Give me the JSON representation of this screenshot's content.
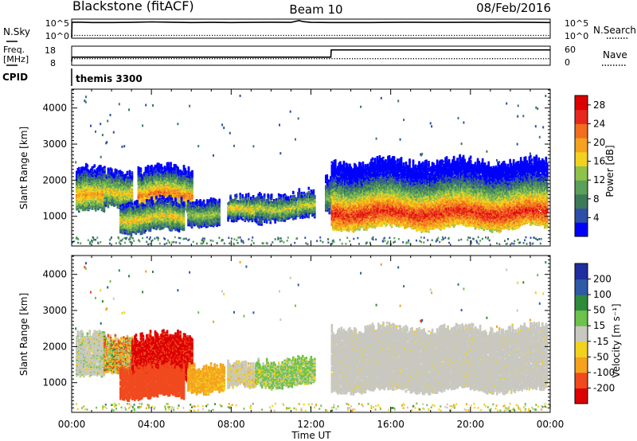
{
  "header": {
    "station": "Blackstone (fitACF)",
    "beam": "Beam 10",
    "date": "08/Feb/2016"
  },
  "colors": {
    "gs_gray": "#c8c8c0",
    "power_scale": [
      "#0000ff",
      "#2e4fa8",
      "#3d7a5a",
      "#5aa05a",
      "#8fc24a",
      "#f2d21e",
      "#f5a21e",
      "#f06e1e",
      "#e8281e",
      "#dc0000"
    ],
    "velocity_scale": [
      "#dc0000",
      "#f04a1e",
      "#f5a21e",
      "#f2d21e",
      "#c8c8c0",
      "#6cc24a",
      "#2e8a3c",
      "#2e5aa8",
      "#1f2fa0"
    ]
  },
  "chart_data": [
    {
      "type": "line",
      "panel": "nsky-nsearch",
      "labels": {
        "left": "N.Sky",
        "right": "N.Search"
      },
      "left_ticks": [
        "10^5",
        "10^0"
      ],
      "right_ticks": [
        "10^5",
        "10^0"
      ],
      "series": [
        {
          "name": "N.Sky",
          "style": "solid",
          "x": [
            0,
            0.02,
            0.5,
            1,
            2,
            3,
            4,
            5,
            6,
            7,
            8,
            9,
            10,
            11,
            11.4,
            11.6,
            12,
            13,
            14,
            15,
            16,
            17,
            18,
            19,
            20,
            21,
            22,
            23,
            24
          ],
          "y": [
            0,
            4.6,
            4.6,
            4.5,
            4.5,
            4.55,
            4.7,
            4.6,
            4.5,
            4.55,
            4.5,
            4.55,
            4.6,
            4.55,
            5.1,
            4.8,
            4.55,
            4.5,
            4.5,
            4.5,
            4.55,
            4.6,
            4.55,
            4.55,
            4.6,
            4.55,
            4.6,
            4.55,
            4.5
          ]
        },
        {
          "name": "N.Search",
          "style": "dotted",
          "x": [
            0,
            24
          ],
          "y": [
            0.6,
            0.6
          ]
        }
      ]
    },
    {
      "type": "line",
      "panel": "freq-nave",
      "labels": {
        "left": "Freq. [MHz]",
        "right": "Nave",
        "cpid": "CPID"
      },
      "left_ticks": [
        "18",
        "8"
      ],
      "right_ticks": [
        "60",
        "0"
      ],
      "cpid": "themis 3300",
      "series": [
        {
          "name": "Freq",
          "style": "solid",
          "x": [
            0,
            0.02,
            13,
            13.02,
            24
          ],
          "y": [
            8,
            11,
            11,
            16,
            16
          ]
        },
        {
          "name": "Nave",
          "style": "dotted",
          "x": [
            0,
            24
          ],
          "y": [
            10,
            10
          ]
        }
      ]
    },
    {
      "type": "heatmap",
      "panel": "power",
      "ylabel": "Slant Range [km]",
      "yticks": [
        "1000",
        "2000",
        "3000",
        "4000"
      ],
      "ylim": [
        200,
        4500
      ],
      "xlim": [
        0,
        24
      ],
      "colorbar": {
        "label": "Power [dB]",
        "ticks": [
          "4",
          "8",
          "12",
          "16",
          "20",
          "24",
          "28"
        ],
        "range": [
          0,
          30
        ]
      },
      "regions": [
        {
          "t0": 0.2,
          "t1": 1.6,
          "r_lo": 1150,
          "r_hi": 2300,
          "peak_r": 1550,
          "peak": 20
        },
        {
          "t0": 1.6,
          "t1": 3.0,
          "r_lo": 1300,
          "r_hi": 2250,
          "peak_r": 1700,
          "peak": 18
        },
        {
          "t0": 3.3,
          "t1": 6.0,
          "r_lo": 1200,
          "r_hi": 2300,
          "peak_r": 1600,
          "peak": 22
        },
        {
          "t0": 2.4,
          "t1": 5.6,
          "r_lo": 600,
          "r_hi": 1400,
          "peak_r": 950,
          "peak": 18
        },
        {
          "t0": 5.8,
          "t1": 7.4,
          "r_lo": 800,
          "r_hi": 1500,
          "peak_r": 1100,
          "peak": 14
        },
        {
          "t0": 7.8,
          "t1": 9.5,
          "r_lo": 850,
          "r_hi": 1450,
          "peak_r": 1150,
          "peak": 18
        },
        {
          "t0": 9.2,
          "t1": 12.2,
          "r_lo": 950,
          "r_hi": 1600,
          "peak_r": 1250,
          "peak": 16
        },
        {
          "t0": 12.7,
          "t1": 13.1,
          "r_lo": 1100,
          "r_hi": 2100,
          "peak_r": 1500,
          "peak": 12
        },
        {
          "t0": 13.0,
          "t1": 23.8,
          "r_lo": 700,
          "r_hi": 2500,
          "peak_r": 1100,
          "peak": 26
        }
      ]
    },
    {
      "type": "heatmap",
      "panel": "velocity",
      "ylabel": "Slant Range [km]",
      "yticks": [
        "1000",
        "2000",
        "3000",
        "4000"
      ],
      "ylim": [
        200,
        4500
      ],
      "xlim": [
        0,
        24
      ],
      "xlabel": "Time UT",
      "xticks": [
        "00:00",
        "04:00",
        "08:00",
        "12:00",
        "16:00",
        "20:00",
        "00:00"
      ],
      "colorbar": {
        "label": "Velocity [m s⁻¹]",
        "ticks": [
          "-200",
          "-100",
          "-50",
          "-15",
          "15",
          "50",
          "100",
          "200"
        ],
        "range": [
          -250,
          250
        ]
      },
      "regions": [
        {
          "t0": 0.2,
          "t1": 1.6,
          "r_lo": 1150,
          "r_hi": 2300,
          "mode": "gs_mix",
          "v": 0
        },
        {
          "t0": 1.6,
          "t1": 3.0,
          "r_lo": 1300,
          "r_hi": 2250,
          "mode": "mix",
          "v": -40
        },
        {
          "t0": 3.0,
          "t1": 6.0,
          "r_lo": 1100,
          "r_hi": 2300,
          "mode": "solid",
          "v": -210
        },
        {
          "t0": 2.4,
          "t1": 5.6,
          "r_lo": 600,
          "r_hi": 1400,
          "mode": "solid",
          "v": -120
        },
        {
          "t0": 5.8,
          "t1": 7.6,
          "r_lo": 800,
          "r_hi": 1500,
          "mode": "solid",
          "v": -60
        },
        {
          "t0": 7.8,
          "t1": 9.2,
          "r_lo": 850,
          "r_hi": 1450,
          "mode": "gs_mix",
          "v": -30
        },
        {
          "t0": 9.2,
          "t1": 12.2,
          "r_lo": 950,
          "r_hi": 1600,
          "mode": "green_mix",
          "v": 20
        },
        {
          "t0": 13.0,
          "t1": 23.8,
          "r_lo": 800,
          "r_hi": 2500,
          "mode": "gs",
          "v": 0
        }
      ]
    }
  ]
}
